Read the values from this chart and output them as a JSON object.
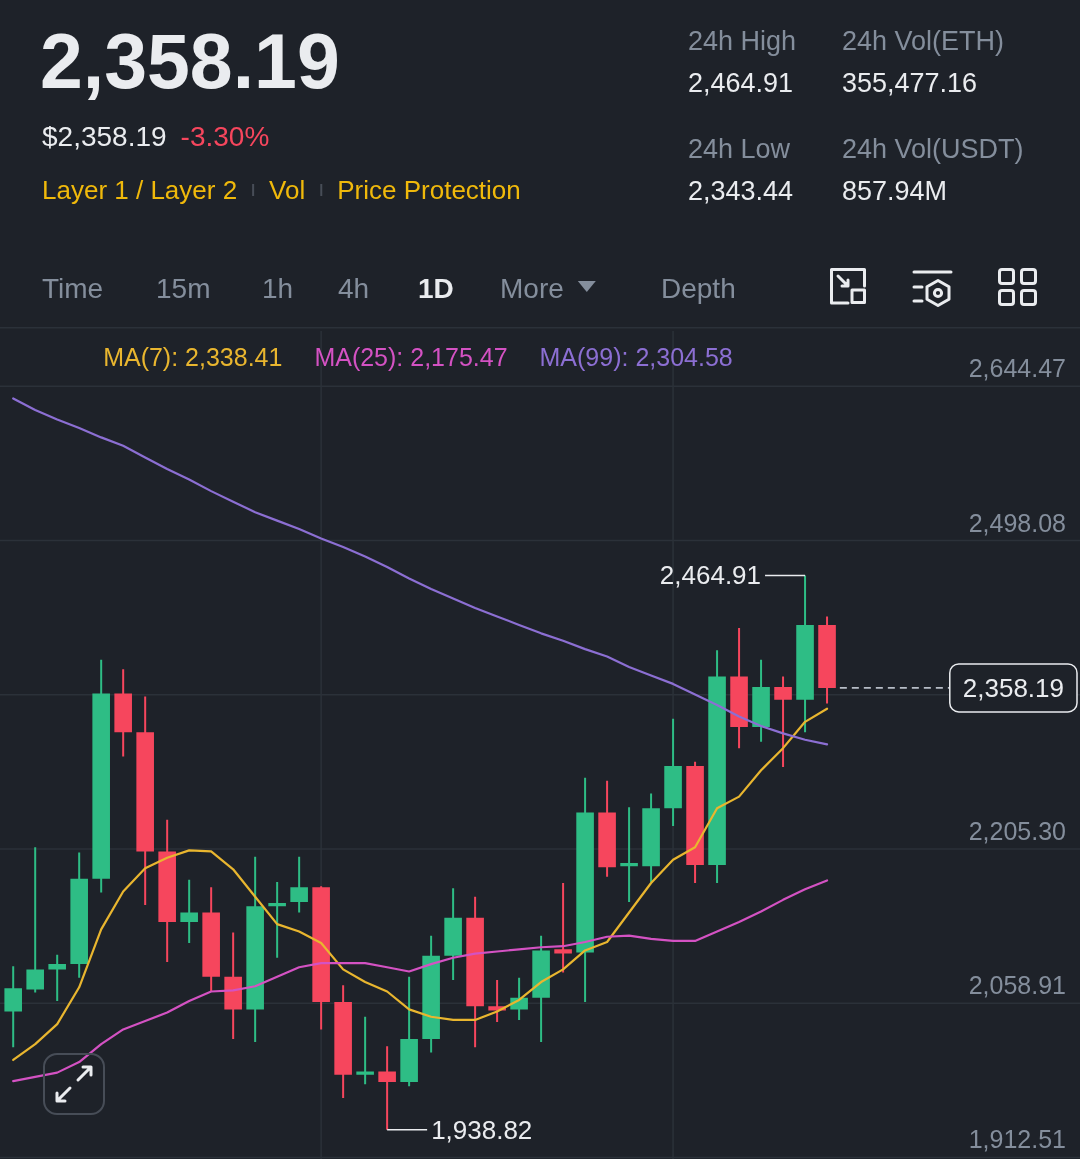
{
  "chart_data": {
    "type": "candlestick",
    "title": "2,358.19",
    "categories": [
      null,
      null,
      null,
      null,
      null,
      null,
      null,
      null,
      null,
      null,
      null,
      null,
      null,
      null,
      null,
      null,
      null,
      null,
      null,
      null,
      null,
      null,
      null,
      null,
      null,
      null,
      null,
      null,
      null,
      null,
      null,
      null,
      null,
      null,
      null,
      null,
      null,
      null
    ],
    "ohlc": [
      [
        2051,
        2094,
        2017,
        2073
      ],
      [
        2072,
        2207,
        2069,
        2091
      ],
      [
        2091,
        2105,
        2061,
        2096
      ],
      [
        2096,
        2202,
        2083,
        2177
      ],
      [
        2177,
        2385,
        2164,
        2353
      ],
      [
        2353,
        2376,
        2293,
        2316
      ],
      [
        2316,
        2350,
        2152,
        2203
      ],
      [
        2203,
        2233,
        2098,
        2136
      ],
      [
        2136,
        2176,
        2116,
        2145
      ],
      [
        2145,
        2169,
        2070,
        2084
      ],
      [
        2084,
        2126,
        2025,
        2053
      ],
      [
        2053,
        2198,
        2022,
        2151
      ],
      [
        2151,
        2174,
        2102,
        2154
      ],
      [
        2155,
        2198,
        2145,
        2169
      ],
      [
        2169,
        2170,
        2034,
        2060
      ],
      [
        2060,
        2076,
        1969,
        1991
      ],
      [
        1991,
        2046,
        1982,
        1994
      ],
      [
        1994,
        2018,
        1938.82,
        1984
      ],
      [
        1984,
        2084,
        1980,
        2025
      ],
      [
        2025,
        2123,
        2012,
        2104
      ],
      [
        2104,
        2168,
        2081,
        2140
      ],
      [
        2140,
        2160,
        2017,
        2056
      ],
      [
        2056,
        2081,
        2041,
        2052
      ],
      [
        2053,
        2083,
        2043,
        2064
      ],
      [
        2064,
        2123,
        2022,
        2109
      ],
      [
        2110,
        2173,
        2088,
        2106
      ],
      [
        2107,
        2273,
        2060,
        2240
      ],
      [
        2240,
        2270,
        2179,
        2188
      ],
      [
        2189,
        2245,
        2155,
        2192
      ],
      [
        2189,
        2258,
        2174,
        2244
      ],
      [
        2244,
        2329,
        2227,
        2284
      ],
      [
        2284,
        2288,
        2173,
        2190
      ],
      [
        2190,
        2394,
        2173,
        2369
      ],
      [
        2369,
        2415,
        2301,
        2321
      ],
      [
        2321,
        2385,
        2307,
        2359
      ],
      [
        2359,
        2369,
        2283,
        2347
      ],
      [
        2347,
        2464.91,
        2316,
        2418
      ],
      [
        2418,
        2426,
        2343.44,
        2358.19
      ]
    ],
    "colors": [
      "#2ebd85",
      "#2ebd85",
      "#2ebd85",
      "#2ebd85",
      "#2ebd85",
      "#f6465d",
      "#f6465d",
      "#f6465d",
      "#2ebd85",
      "#f6465d",
      "#f6465d",
      "#2ebd85",
      "#2ebd85",
      "#2ebd85",
      "#f6465d",
      "#f6465d",
      "#2ebd85",
      "#f6465d",
      "#2ebd85",
      "#2ebd85",
      "#2ebd85",
      "#f6465d",
      "#f6465d",
      "#2ebd85",
      "#2ebd85",
      "#f6465d",
      "#2ebd85",
      "#f6465d",
      "#2ebd85",
      "#2ebd85",
      "#2ebd85",
      "#f6465d",
      "#2ebd85",
      "#f6465d",
      "#2ebd85",
      "#f6465d",
      "#2ebd85",
      "#f6465d"
    ],
    "series": [
      {
        "name": "MA(7): 2,338.41",
        "type": "line",
        "color": "#e9b62f",
        "values": [
          2005,
          2020,
          2039,
          2074,
          2129,
          2165,
          2187,
          2197,
          2204,
          2203,
          2186,
          2160,
          2134,
          2127,
          2116,
          2091,
          2079,
          2070,
          2053,
          2046,
          2043,
          2043,
          2051,
          2062,
          2079,
          2091,
          2109,
          2117,
          2145,
          2173,
          2195,
          2207,
          2244,
          2255,
          2280,
          2301,
          2326,
          2338.41
        ]
      },
      {
        "name": "MA(25): 2,175.47",
        "type": "line",
        "color": "#d452c3",
        "values": [
          1985,
          1989,
          1993,
          2003,
          2020,
          2034,
          2042,
          2050,
          2061,
          2070,
          2071,
          2075,
          2084,
          2093,
          2097,
          2097,
          2097,
          2093,
          2089,
          2096,
          2102,
          2106,
          2108,
          2110,
          2112,
          2113,
          2117,
          2122,
          2123,
          2120,
          2118,
          2118,
          2127,
          2136,
          2146,
          2157,
          2167,
          2175.47
        ]
      },
      {
        "name": "MA(99): 2,304.58",
        "type": "line",
        "color": "#8c6fd3",
        "values": [
          2633,
          2622,
          2613,
          2605,
          2596,
          2588,
          2577,
          2566,
          2556,
          2545,
          2535,
          2525,
          2517,
          2509,
          2500,
          2492,
          2483,
          2473,
          2462,
          2452,
          2443,
          2434,
          2426,
          2418,
          2410,
          2403,
          2395,
          2388,
          2378,
          2370,
          2362,
          2352,
          2342,
          2331,
          2322,
          2315,
          2309,
          2304.58
        ]
      }
    ],
    "ylim": [
      1911,
      2697
    ],
    "yticks": [
      {
        "value": 2644.47,
        "label": "2,644.47"
      },
      {
        "value": 2498.08,
        "label": "2,498.08"
      },
      {
        "value": 2351.69,
        "label": null
      },
      {
        "value": 2205.3,
        "label": "2,205.30"
      },
      {
        "value": 2058.91,
        "label": "2,058.91"
      },
      {
        "value": 1912.51,
        "label": "1,912.51"
      }
    ],
    "grid": "y",
    "legend": "top",
    "tick_labels": "y",
    "line_style": "solid",
    "ref_lines": [
      {
        "axis": "y",
        "value": 2358.19,
        "label": "2,358.19",
        "line_style": "dashed",
        "color": "#b7bdc6"
      }
    ],
    "annotations": [
      "$2,358.19",
      "-3.30%",
      "Layer 1 / Layer 2",
      "Vol",
      "Price Protection",
      "24h High",
      "2,464.91",
      "24h Vol(ETH)",
      "355,477.16",
      "24h Low",
      "2,343.44",
      "24h Vol(USDT)",
      "857.94M",
      "Time",
      "15m",
      "1h",
      "4h",
      "1D",
      "More",
      "Depth",
      "2,464.91",
      "1,938.82"
    ]
  }
}
